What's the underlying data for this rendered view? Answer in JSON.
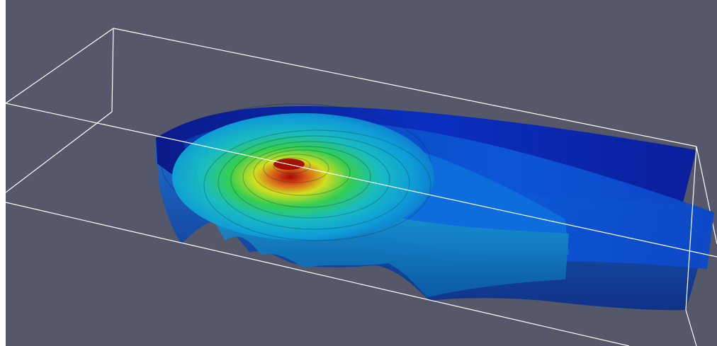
{
  "scene": {
    "description_free": true,
    "background_color": "#545868",
    "bounding_box_color": "#ffffff",
    "colormap": [
      "#0a1d9e",
      "#0b3ad0",
      "#0d6ee8",
      "#16b3f0",
      "#22d6d8",
      "#2ed46c",
      "#8fe020",
      "#f0e21a",
      "#e06012",
      "#b00000"
    ],
    "layer_count": 8
  }
}
